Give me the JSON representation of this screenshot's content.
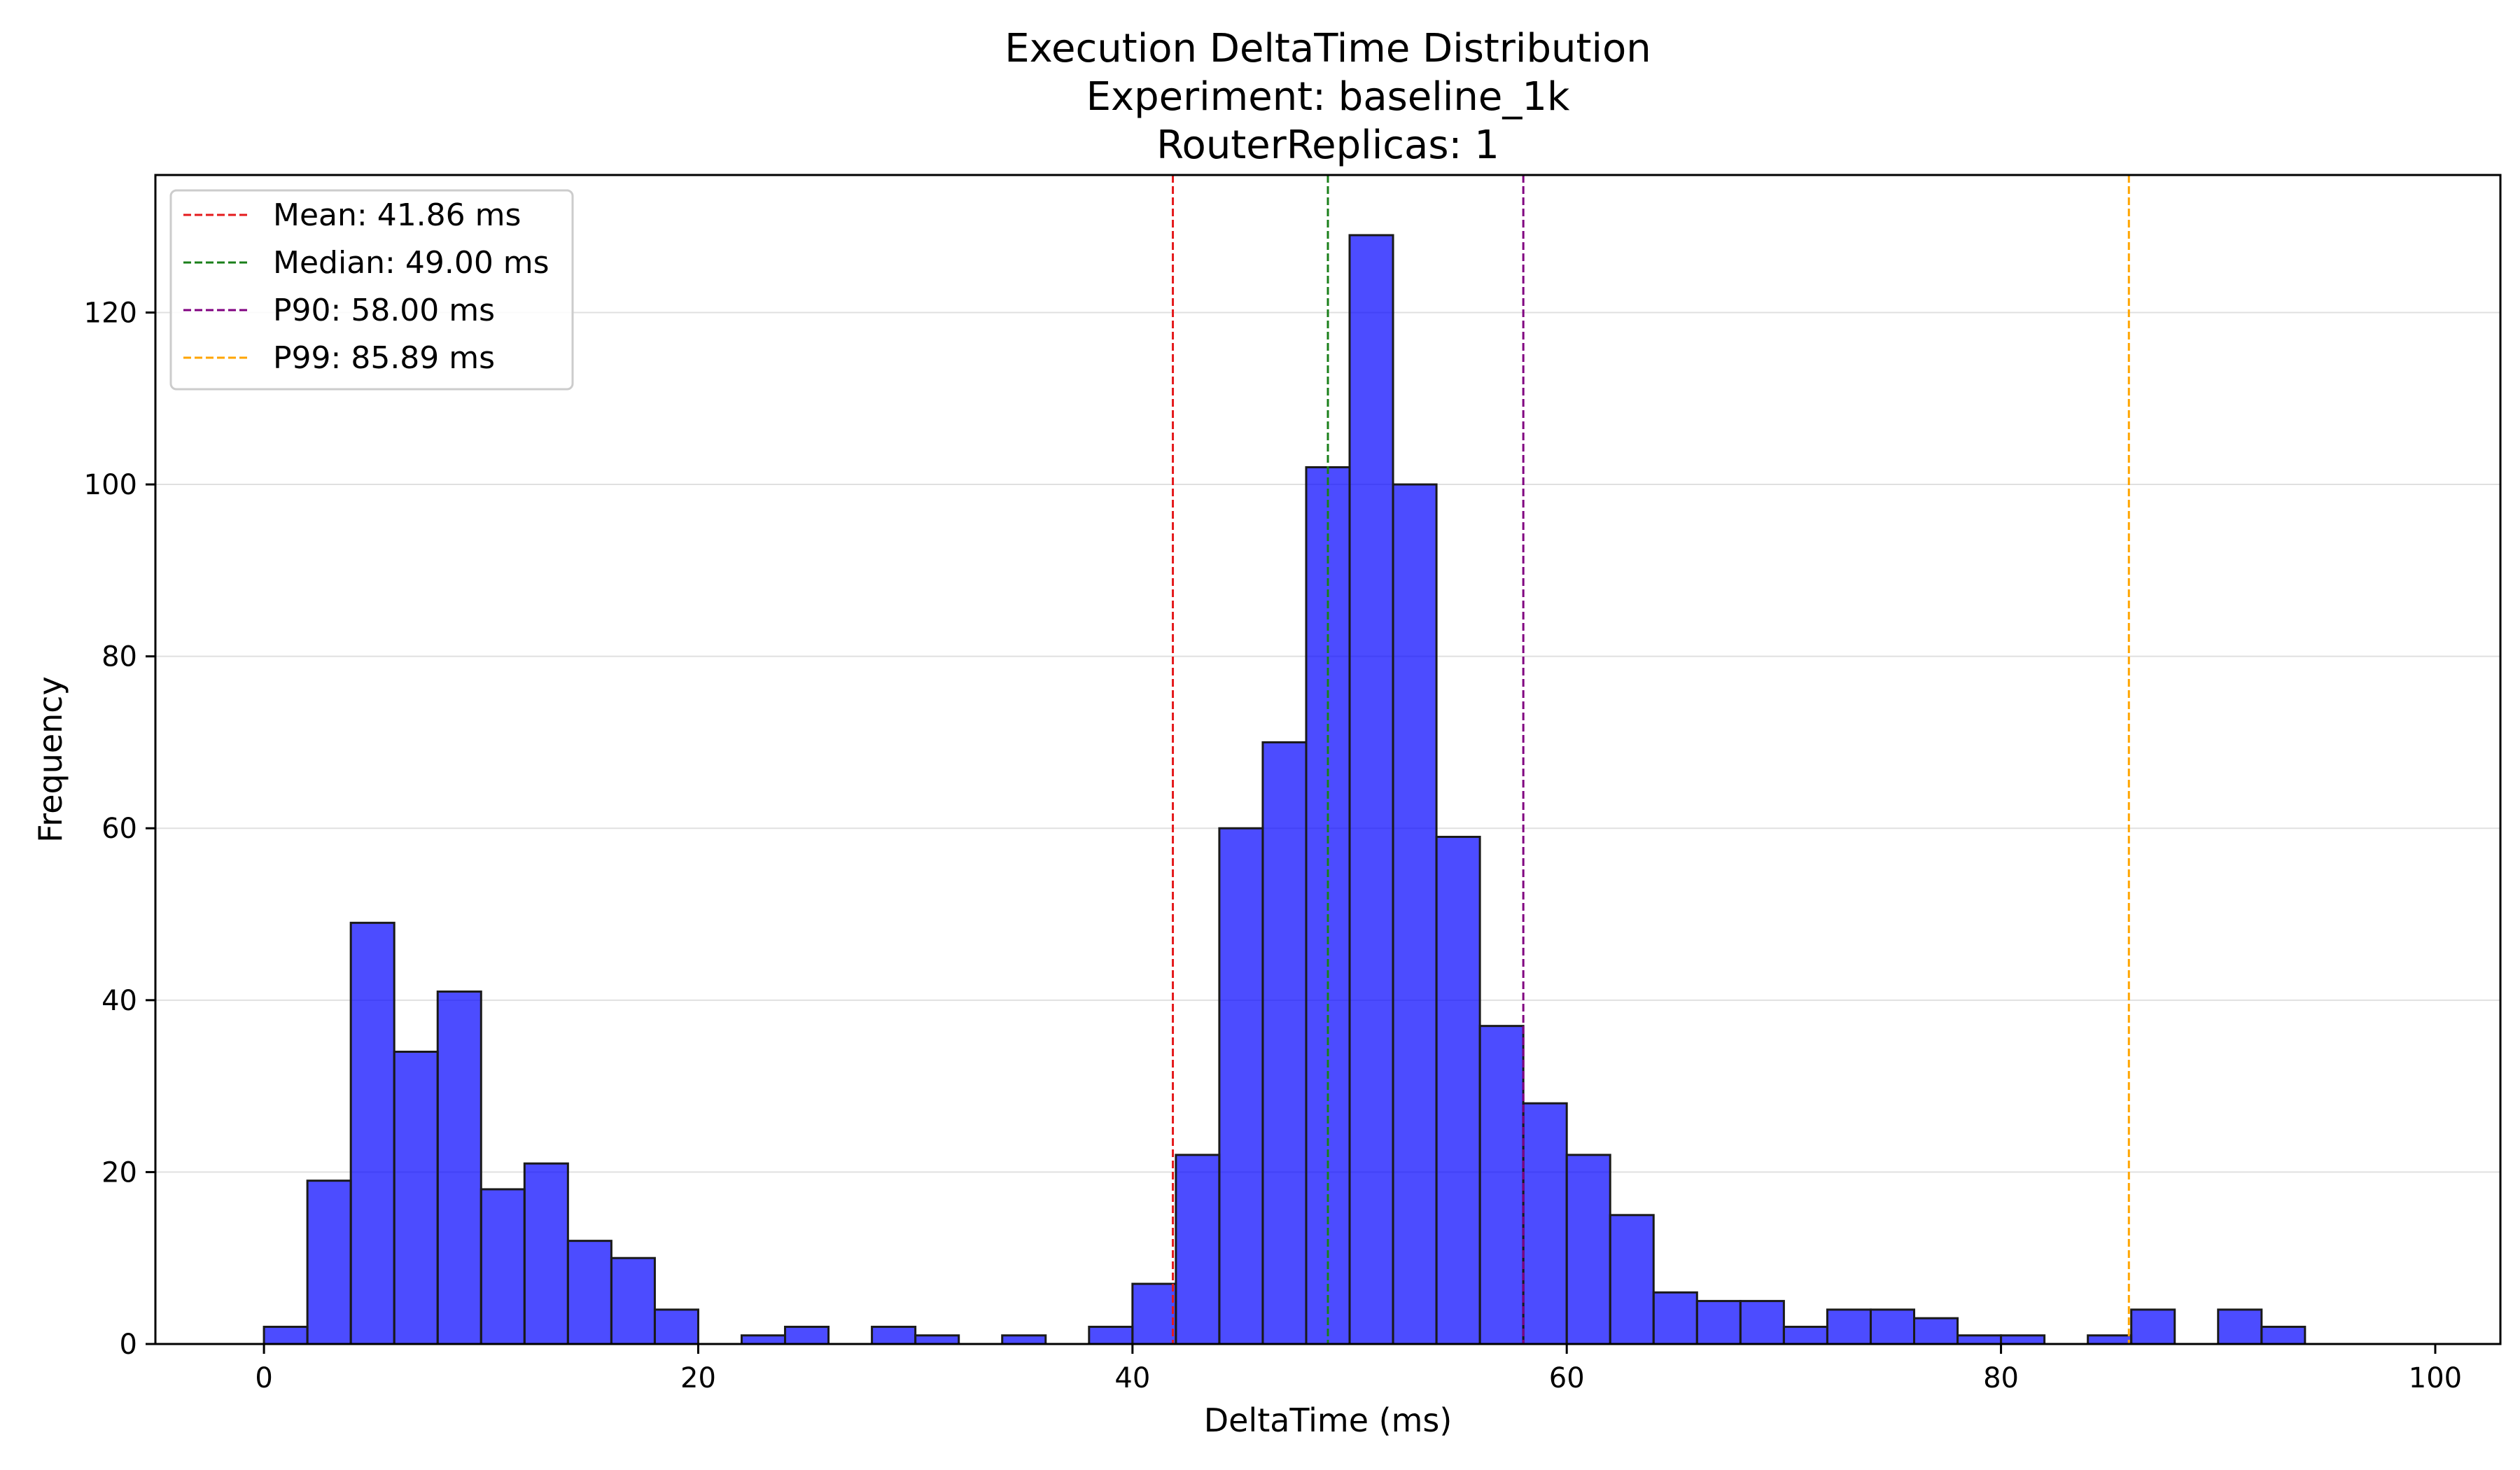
{
  "chart_data": {
    "type": "bar",
    "title_lines": [
      "Execution DeltaTime Distribution",
      "Experiment: baseline_1k",
      "RouterReplicas: 1"
    ],
    "xlabel": "DeltaTime (ms)",
    "ylabel": "Frequency",
    "xlim": [
      -5,
      103
    ],
    "ylim": [
      0,
      136
    ],
    "xticks": [
      0,
      20,
      40,
      60,
      80,
      100
    ],
    "yticks": [
      0,
      20,
      40,
      60,
      80,
      100,
      120
    ],
    "grid": "y",
    "bar_color": "#0000ff",
    "bar_edge_color": "#1a1a1a",
    "bin_width": 2,
    "bins": [
      {
        "x0": 0,
        "count": 2
      },
      {
        "x0": 2,
        "count": 19
      },
      {
        "x0": 4,
        "count": 49
      },
      {
        "x0": 6,
        "count": 34
      },
      {
        "x0": 8,
        "count": 41
      },
      {
        "x0": 10,
        "count": 18
      },
      {
        "x0": 12,
        "count": 21
      },
      {
        "x0": 14,
        "count": 12
      },
      {
        "x0": 16,
        "count": 10
      },
      {
        "x0": 18,
        "count": 4
      },
      {
        "x0": 20,
        "count": 0
      },
      {
        "x0": 22,
        "count": 1
      },
      {
        "x0": 24,
        "count": 2
      },
      {
        "x0": 26,
        "count": 0
      },
      {
        "x0": 28,
        "count": 2
      },
      {
        "x0": 30,
        "count": 1
      },
      {
        "x0": 32,
        "count": 0
      },
      {
        "x0": 34,
        "count": 1
      },
      {
        "x0": 36,
        "count": 0
      },
      {
        "x0": 38,
        "count": 2
      },
      {
        "x0": 40,
        "count": 7
      },
      {
        "x0": 42,
        "count": 22
      },
      {
        "x0": 44,
        "count": 60
      },
      {
        "x0": 46,
        "count": 70
      },
      {
        "x0": 48,
        "count": 102
      },
      {
        "x0": 50,
        "count": 129
      },
      {
        "x0": 52,
        "count": 100
      },
      {
        "x0": 54,
        "count": 59
      },
      {
        "x0": 56,
        "count": 37
      },
      {
        "x0": 58,
        "count": 28
      },
      {
        "x0": 60,
        "count": 22
      },
      {
        "x0": 62,
        "count": 15
      },
      {
        "x0": 64,
        "count": 6
      },
      {
        "x0": 66,
        "count": 5
      },
      {
        "x0": 68,
        "count": 5
      },
      {
        "x0": 70,
        "count": 2
      },
      {
        "x0": 72,
        "count": 4
      },
      {
        "x0": 74,
        "count": 4
      },
      {
        "x0": 76,
        "count": 3
      },
      {
        "x0": 78,
        "count": 1
      },
      {
        "x0": 80,
        "count": 1
      },
      {
        "x0": 82,
        "count": 0
      },
      {
        "x0": 84,
        "count": 1
      },
      {
        "x0": 86,
        "count": 4
      },
      {
        "x0": 88,
        "count": 0
      },
      {
        "x0": 90,
        "count": 4
      },
      {
        "x0": 92,
        "count": 2
      },
      {
        "x0": 94,
        "count": 0
      },
      {
        "x0": 96,
        "count": 0
      }
    ],
    "reference_lines": [
      {
        "name": "Mean",
        "label": "Mean: 41.86 ms",
        "value": 41.86,
        "color": "#e41a1c"
      },
      {
        "name": "Median",
        "label": "Median: 49.00 ms",
        "value": 49.0,
        "color": "#1a7f1a"
      },
      {
        "name": "P90",
        "label": "P90: 58.00 ms",
        "value": 58.0,
        "color": "#800080"
      },
      {
        "name": "P99",
        "label": "P99: 85.89 ms",
        "value": 85.89,
        "color": "#ffa500"
      }
    ],
    "legend_position": "top-left"
  }
}
